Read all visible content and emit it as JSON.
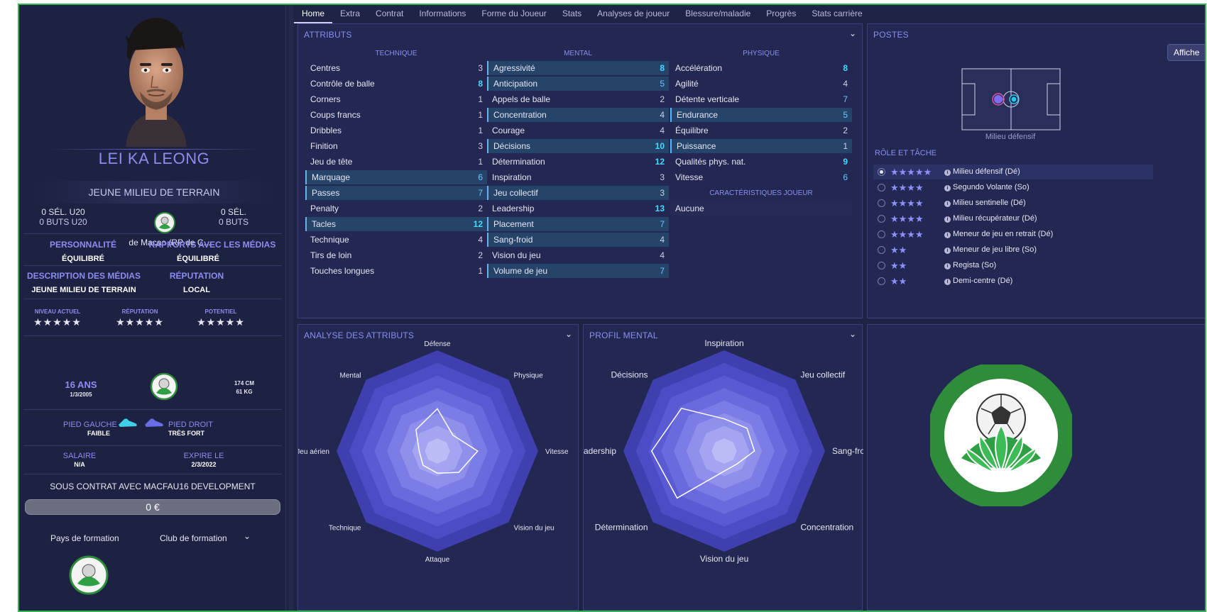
{
  "player": {
    "name": "LEI KA LEONG",
    "role": "JEUNE MILIEU DE TERRAIN",
    "u20_caps": "0 SÉL. U20",
    "u20_goals": "0 BUTS U20",
    "caps": "0 SÉL.",
    "goals": "0 BUTS",
    "nation": "de Macao (RP de C...",
    "personality_label": "PERSONNALITÉ",
    "personality": "ÉQUILIBRÉ",
    "media_rel_label": "RAPPORTS AVEC LES MÉDIAS",
    "media_rel": "ÉQUILIBRÉ",
    "media_desc_label": "DESCRIPTION DES MÉDIAS",
    "media_desc": "JEUNE MILIEU DE TERRAIN",
    "reputation_label": "RÉPUTATION",
    "reputation": "LOCAL",
    "current_level_label": "NIVEAU ACTUEL",
    "reputation_small_label": "RÉPUTATION",
    "potential_label": "POTENTIEL",
    "stars": "★★★★★",
    "age": "16 ANS",
    "dob": "1/3/2005",
    "height": "174 CM",
    "weight": "61 KG",
    "left_foot_label": "PIED GAUCHE",
    "left_foot": "FAIBLE",
    "right_foot_label": "PIED DROIT",
    "right_foot": "TRÈS FORT",
    "salary_label": "SALAIRE",
    "salary": "N/A",
    "expires_label": "EXPIRE LE",
    "expires": "2/3/2022",
    "contract": "SOUS CONTRAT AVEC MACFAU16 DEVELOPMENT",
    "value": "0 €",
    "training_country": "Pays de formation",
    "training_club": "Club de formation"
  },
  "tabs": [
    "Home",
    "Extra",
    "Contrat",
    "Informations",
    "Forme du Joueur",
    "Stats",
    "Analyses de joueur",
    "Blessure/maladie",
    "Progrès",
    "Stats carrière"
  ],
  "attributes": {
    "title": "ATTRIBUTS",
    "technique_title": "TECHNIQUE",
    "mental_title": "MENTAL",
    "physique_title": "PHYSIQUE",
    "technique": [
      {
        "name": "Centres",
        "value": "3",
        "hl": false
      },
      {
        "name": "Contrôle de balle",
        "value": "8",
        "hl": false
      },
      {
        "name": "Corners",
        "value": "1",
        "hl": false
      },
      {
        "name": "Coups francs",
        "value": "1",
        "hl": false
      },
      {
        "name": "Dribbles",
        "value": "1",
        "hl": false
      },
      {
        "name": "Finition",
        "value": "3",
        "hl": false
      },
      {
        "name": "Jeu de tête",
        "value": "1",
        "hl": false
      },
      {
        "name": "Marquage",
        "value": "6",
        "hl": true
      },
      {
        "name": "Passes",
        "value": "7",
        "hl": true
      },
      {
        "name": "Penalty",
        "value": "2",
        "hl": false
      },
      {
        "name": "Tacles",
        "value": "12",
        "hl": true
      },
      {
        "name": "Technique",
        "value": "4",
        "hl": false
      },
      {
        "name": "Tirs de loin",
        "value": "2",
        "hl": false
      },
      {
        "name": "Touches longues",
        "value": "1",
        "hl": false
      }
    ],
    "mental": [
      {
        "name": "Agressivité",
        "value": "8",
        "hl": true
      },
      {
        "name": "Anticipation",
        "value": "5",
        "hl": true
      },
      {
        "name": "Appels de balle",
        "value": "2",
        "hl": false
      },
      {
        "name": "Concentration",
        "value": "4",
        "hl": true
      },
      {
        "name": "Courage",
        "value": "4",
        "hl": false
      },
      {
        "name": "Décisions",
        "value": "10",
        "hl": true
      },
      {
        "name": "Détermination",
        "value": "12",
        "hl": false
      },
      {
        "name": "Inspiration",
        "value": "3",
        "hl": false
      },
      {
        "name": "Jeu collectif",
        "value": "3",
        "hl": true
      },
      {
        "name": "Leadership",
        "value": "13",
        "hl": false
      },
      {
        "name": "Placement",
        "value": "7",
        "hl": true
      },
      {
        "name": "Sang-froid",
        "value": "4",
        "hl": true
      },
      {
        "name": "Vision du jeu",
        "value": "4",
        "hl": false
      },
      {
        "name": "Volume de jeu",
        "value": "7",
        "hl": true
      }
    ],
    "physique": [
      {
        "name": "Accélération",
        "value": "8",
        "hl": false
      },
      {
        "name": "Agilité",
        "value": "4",
        "hl": false
      },
      {
        "name": "Détente verticale",
        "value": "7",
        "hl": false
      },
      {
        "name": "Endurance",
        "value": "5",
        "hl": true
      },
      {
        "name": "Équilibre",
        "value": "2",
        "hl": false
      },
      {
        "name": "Puissance",
        "value": "1",
        "hl": true
      },
      {
        "name": "Qualités phys. nat.",
        "value": "9",
        "hl": false
      },
      {
        "name": "Vitesse",
        "value": "6",
        "hl": false
      }
    ],
    "traits_title": "CARACTÉRISTIQUES JOUEUR",
    "traits_value": "Aucune"
  },
  "positions": {
    "title": "POSTES",
    "affiche": "Affiche",
    "position_label": "Milieu défensif",
    "roles_title": "RÔLE ET TÂCHE",
    "roles": [
      {
        "stars": "★★★★★",
        "name": "Milieu défensif (Dé)",
        "selected": true
      },
      {
        "stars": "★★★★",
        "name": "Segundo Volante (So)",
        "selected": false
      },
      {
        "stars": "★★★★",
        "name": "Milieu sentinelle (Dé)",
        "selected": false
      },
      {
        "stars": "★★★★",
        "name": "Milieu récupérateur (Dé)",
        "selected": false
      },
      {
        "stars": "★★★★",
        "name": "Meneur de jeu en retrait (Dé)",
        "selected": false
      },
      {
        "stars": "★★",
        "name": "Meneur de jeu libre (So)",
        "selected": false
      },
      {
        "stars": "★★",
        "name": "Regista (So)",
        "selected": false
      },
      {
        "stars": "★★",
        "name": "Demi-centre (Dé)",
        "selected": false
      }
    ]
  },
  "analysis": {
    "title": "ANALYSE DES ATTRIBUTS",
    "labels": [
      "Défense",
      "Physique",
      "Vitesse",
      "Vision du jeu",
      "Attaque",
      "Technique",
      "Jeu aérien",
      "Mental"
    ],
    "values": [
      0.42,
      0.22,
      0.4,
      0.3,
      0.22,
      0.2,
      0.18,
      0.3
    ]
  },
  "mental_profile": {
    "title": "PROFIL MENTAL",
    "labels": [
      "Inspiration",
      "Jeu collectif",
      "Sang-froid",
      "Concentration",
      "Vision du jeu",
      "Détermination",
      "Leadership",
      "Décisions"
    ],
    "values": [
      0.32,
      0.32,
      0.3,
      0.18,
      0.2,
      0.66,
      0.72,
      0.6
    ]
  },
  "colors": {
    "accent": "#8d8cf0",
    "highlight_row": "#26446a",
    "cyan_value": "#4ad8ff",
    "frame_border": "#2fb84a"
  }
}
